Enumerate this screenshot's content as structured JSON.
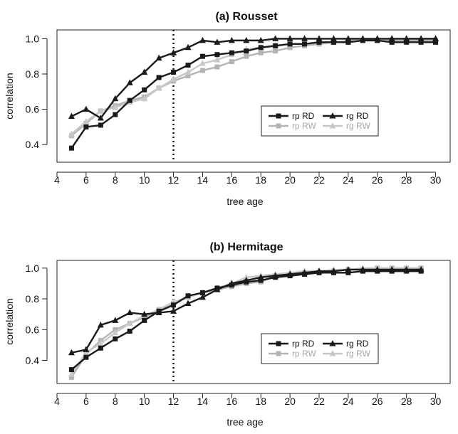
{
  "chart_data": [
    {
      "type": "line",
      "title": "(a) Rousset",
      "xlabel": "tree age",
      "ylabel": "correlation",
      "xlim": [
        4,
        31
      ],
      "ylim": [
        0.3,
        1.05
      ],
      "xticks": [
        "4",
        "6",
        "8",
        "10",
        "12",
        "14",
        "16",
        "18",
        "20",
        "22",
        "24",
        "26",
        "28",
        "30"
      ],
      "yticks": [
        "0.4",
        "0.6",
        "0.8",
        "1.0"
      ],
      "vline": 12,
      "legend_position": "center-right",
      "series": [
        {
          "name": "rp RD",
          "color": "#1a1a1a",
          "marker": "square",
          "x": [
            5,
            6,
            7,
            8,
            9,
            10,
            11,
            12,
            13,
            14,
            15,
            16,
            17,
            18,
            19,
            20,
            21,
            22,
            23,
            24,
            25,
            26,
            27,
            28,
            29,
            30
          ],
          "values": [
            0.38,
            0.5,
            0.51,
            0.57,
            0.65,
            0.71,
            0.78,
            0.81,
            0.85,
            0.9,
            0.91,
            0.92,
            0.93,
            0.95,
            0.96,
            0.97,
            0.97,
            0.98,
            0.98,
            0.98,
            0.99,
            0.99,
            0.98,
            0.98,
            0.98,
            0.98
          ]
        },
        {
          "name": "rg RD",
          "color": "#1a1a1a",
          "marker": "triangle",
          "x": [
            5,
            6,
            7,
            8,
            9,
            10,
            11,
            12,
            13,
            14,
            15,
            16,
            17,
            18,
            19,
            20,
            21,
            22,
            23,
            24,
            25,
            26,
            27,
            28,
            29,
            30
          ],
          "values": [
            0.56,
            0.6,
            0.55,
            0.66,
            0.75,
            0.81,
            0.89,
            0.92,
            0.95,
            0.99,
            0.98,
            0.99,
            0.99,
            0.99,
            1.0,
            1.0,
            1.0,
            1.0,
            1.0,
            1.0,
            1.0,
            1.0,
            1.0,
            1.0,
            1.0,
            1.0
          ]
        },
        {
          "name": "rp RW",
          "color": "#b4b4b4",
          "marker": "square",
          "x": [
            5,
            6,
            7,
            8,
            9,
            10,
            11,
            12,
            13,
            14,
            15,
            16,
            17,
            18,
            19,
            20,
            21,
            22,
            23,
            24,
            25,
            26,
            27,
            28,
            29,
            30
          ],
          "values": [
            0.45,
            0.52,
            0.59,
            0.62,
            0.65,
            0.67,
            0.72,
            0.76,
            0.79,
            0.82,
            0.84,
            0.87,
            0.9,
            0.92,
            0.93,
            0.95,
            0.96,
            0.97,
            0.98,
            0.98,
            0.99,
            0.99,
            0.99,
            0.99,
            0.99,
            0.99
          ]
        },
        {
          "name": "rg RW",
          "color": "#c8c8c8",
          "marker": "triangle",
          "x": [
            5,
            6,
            7,
            8,
            9,
            10,
            11,
            12,
            13,
            14,
            15,
            16,
            17,
            18,
            19,
            20,
            21,
            22,
            23,
            24,
            25,
            26,
            27,
            28,
            29,
            30
          ],
          "values": [
            0.46,
            0.53,
            0.59,
            0.61,
            0.64,
            0.66,
            0.72,
            0.77,
            0.81,
            0.86,
            0.88,
            0.91,
            0.94,
            0.95,
            0.96,
            0.97,
            0.97,
            0.98,
            0.98,
            0.99,
            0.99,
            0.99,
            1.0,
            1.0,
            1.0,
            1.0
          ]
        }
      ]
    },
    {
      "type": "line",
      "title": "(b) Hermitage",
      "xlabel": "tree age",
      "ylabel": "correlation",
      "xlim": [
        4,
        31
      ],
      "ylim": [
        0.25,
        1.05
      ],
      "xticks": [
        "4",
        "6",
        "8",
        "10",
        "12",
        "14",
        "16",
        "18",
        "20",
        "22",
        "24",
        "26",
        "28",
        "30"
      ],
      "yticks": [
        "0.4",
        "0.6",
        "0.8",
        "1.0"
      ],
      "vline": 12,
      "legend_position": "center-right",
      "series": [
        {
          "name": "rp RD",
          "color": "#1a1a1a",
          "marker": "square",
          "x": [
            5,
            6,
            7,
            8,
            9,
            10,
            11,
            12,
            13,
            14,
            15,
            16,
            17,
            18,
            19,
            20,
            21,
            22,
            23,
            24,
            25,
            26,
            27,
            28,
            29
          ],
          "values": [
            0.34,
            0.42,
            0.48,
            0.54,
            0.59,
            0.66,
            0.72,
            0.76,
            0.82,
            0.84,
            0.87,
            0.89,
            0.91,
            0.92,
            0.94,
            0.95,
            0.96,
            0.97,
            0.97,
            0.97,
            0.98,
            0.98,
            0.98,
            0.98,
            0.98
          ]
        },
        {
          "name": "rg RD",
          "color": "#1a1a1a",
          "marker": "triangle",
          "x": [
            5,
            6,
            7,
            8,
            9,
            10,
            11,
            12,
            13,
            14,
            15,
            16,
            17,
            18,
            19,
            20,
            21,
            22,
            23,
            24,
            25,
            26,
            27,
            28,
            29
          ],
          "values": [
            0.45,
            0.47,
            0.63,
            0.66,
            0.71,
            0.7,
            0.71,
            0.72,
            0.77,
            0.81,
            0.86,
            0.9,
            0.92,
            0.94,
            0.95,
            0.96,
            0.97,
            0.98,
            0.98,
            0.99,
            0.99,
            0.99,
            0.99,
            0.99,
            0.99
          ]
        },
        {
          "name": "rp RW",
          "color": "#b4b4b4",
          "marker": "square",
          "x": [
            5,
            6,
            7,
            8,
            9,
            10,
            11,
            12,
            13,
            14,
            15,
            16,
            17,
            18,
            19,
            20,
            21,
            22,
            23,
            24,
            25,
            26,
            27,
            28,
            29
          ],
          "values": [
            0.29,
            0.44,
            0.53,
            0.6,
            0.64,
            0.68,
            0.73,
            0.77,
            0.81,
            0.84,
            0.86,
            0.88,
            0.9,
            0.91,
            0.95,
            0.96,
            0.97,
            0.97,
            0.98,
            0.99,
            0.99,
            1.0,
            1.0,
            1.0,
            1.0
          ]
        },
        {
          "name": "rg RW",
          "color": "#c8c8c8",
          "marker": "triangle",
          "x": [
            5,
            6,
            7,
            8,
            9,
            10,
            11,
            12,
            13,
            14,
            15,
            16,
            17,
            18,
            19,
            20,
            21,
            22,
            23,
            24,
            25,
            26,
            27,
            28,
            29
          ],
          "values": [
            0.31,
            0.45,
            0.51,
            0.58,
            0.64,
            0.69,
            0.73,
            0.78,
            0.81,
            0.84,
            0.87,
            0.9,
            0.94,
            0.95,
            0.96,
            0.97,
            0.98,
            0.98,
            0.99,
            0.99,
            1.0,
            1.0,
            1.0,
            1.0,
            1.0
          ]
        }
      ]
    }
  ]
}
